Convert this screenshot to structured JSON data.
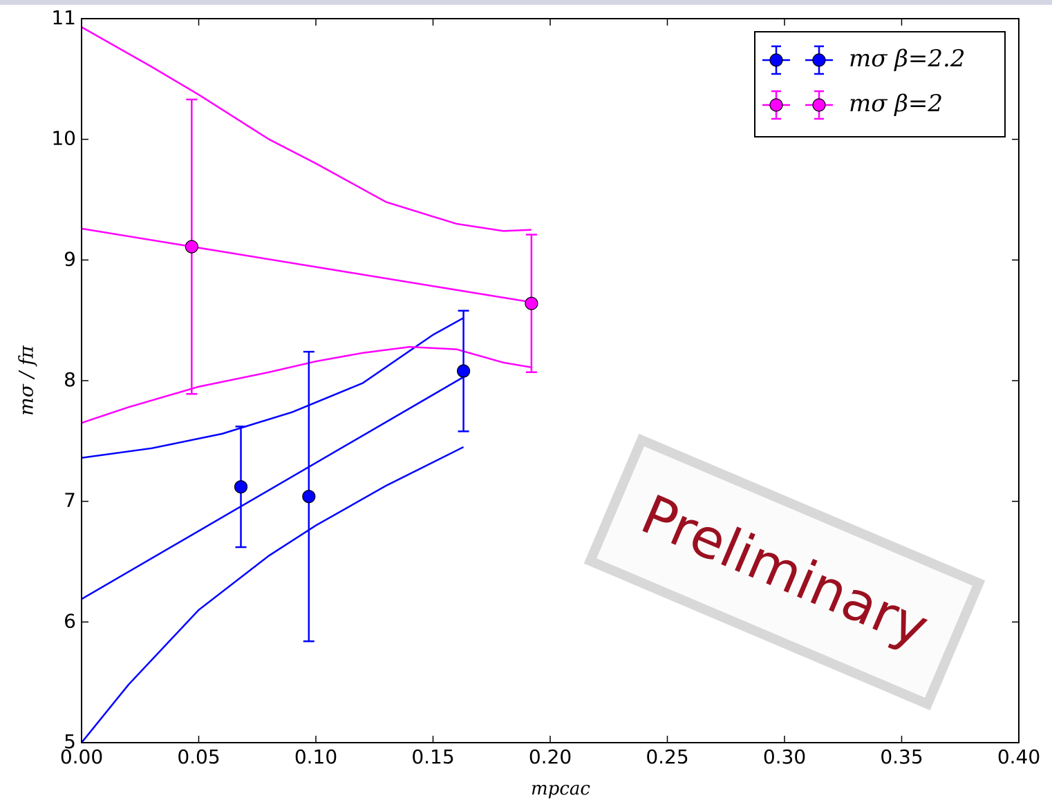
{
  "chart_data": {
    "type": "errorbar",
    "xlabel": "mpcac",
    "ylabel": "mσ / fπ",
    "xlim": [
      0,
      0.4
    ],
    "ylim": [
      5,
      11
    ],
    "xticks": [
      {
        "value": 0,
        "label": "0.00"
      },
      {
        "value": 0.05,
        "label": "0.05"
      },
      {
        "value": 0.1,
        "label": "0.10"
      },
      {
        "value": 0.15,
        "label": "0.15"
      },
      {
        "value": 0.2,
        "label": "0.20"
      },
      {
        "value": 0.25,
        "label": "0.25"
      },
      {
        "value": 0.3,
        "label": "0.30"
      },
      {
        "value": 0.35,
        "label": "0.35"
      },
      {
        "value": 0.4,
        "label": "0.40"
      }
    ],
    "yticks": [
      5,
      6,
      7,
      8,
      9,
      10,
      11
    ],
    "legend": "upper right",
    "series": [
      {
        "name": "mσ  β=2.2",
        "color": "#0000ff",
        "x": [
          0.068,
          0.097,
          0.163
        ],
        "values": [
          7.12,
          7.04,
          8.08
        ],
        "errors": [
          0.5,
          1.2,
          0.5
        ]
      },
      {
        "name": "mσ  β=2",
        "color": "#ff00ff",
        "x": [
          0.047,
          0.192
        ],
        "values": [
          9.11,
          8.64
        ],
        "errors": [
          1.22,
          0.57
        ]
      }
    ],
    "fit_lines": [
      {
        "color": "#0000ff",
        "x": [
          0,
          0.163
        ],
        "values": [
          6.19,
          8.03
        ]
      },
      {
        "color": "#0000ff",
        "x": [
          0,
          0.03,
          0.06,
          0.09,
          0.12,
          0.15,
          0.163
        ],
        "values": [
          7.36,
          7.44,
          7.56,
          7.74,
          7.98,
          8.38,
          8.52
        ]
      },
      {
        "color": "#0000ff",
        "x": [
          0,
          0.02,
          0.05,
          0.08,
          0.1,
          0.13,
          0.163
        ],
        "values": [
          5.0,
          5.48,
          6.1,
          6.55,
          6.8,
          7.13,
          7.45
        ]
      },
      {
        "color": "#ff00ff",
        "x": [
          0,
          0.192
        ],
        "values": [
          9.26,
          8.65
        ]
      },
      {
        "color": "#ff00ff",
        "x": [
          0,
          0.03,
          0.05,
          0.08,
          0.1,
          0.13,
          0.16,
          0.18,
          0.192
        ],
        "values": [
          10.93,
          10.6,
          10.37,
          10.0,
          9.8,
          9.48,
          9.3,
          9.24,
          9.25
        ]
      },
      {
        "color": "#ff00ff",
        "x": [
          0,
          0.02,
          0.05,
          0.08,
          0.1,
          0.12,
          0.14,
          0.16,
          0.18,
          0.192
        ],
        "values": [
          7.65,
          7.78,
          7.95,
          8.07,
          8.16,
          8.23,
          8.28,
          8.26,
          8.15,
          8.11
        ]
      }
    ],
    "annotation": "Preliminary"
  }
}
